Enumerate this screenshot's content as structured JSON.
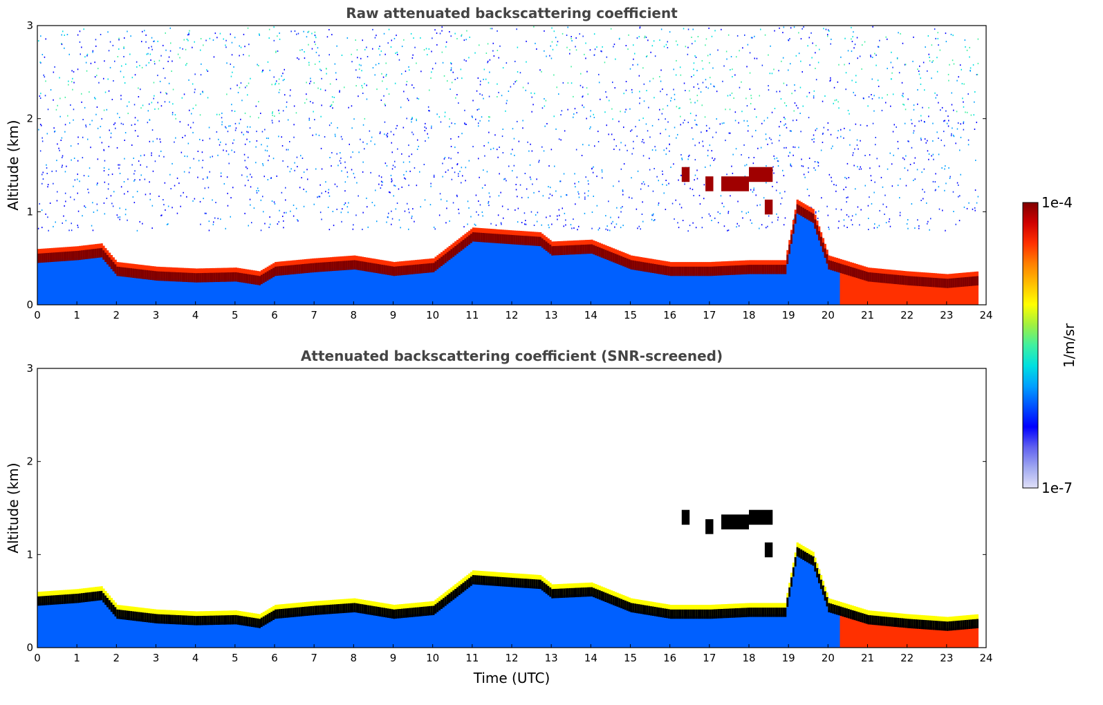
{
  "chart_data": [
    {
      "type": "heatmap",
      "title": "Raw attenuated backscattering coefficient",
      "xlabel": "",
      "ylabel": "Altitude (km)",
      "xlim": [
        0,
        24
      ],
      "ylim": [
        0,
        3
      ],
      "xticks": [
        "0",
        "1",
        "2",
        "3",
        "4",
        "5",
        "6",
        "7",
        "8",
        "9",
        "10",
        "11",
        "12",
        "13",
        "14",
        "15",
        "16",
        "17",
        "18",
        "19",
        "20",
        "21",
        "22",
        "23",
        "24"
      ],
      "yticks": [
        "0",
        "1",
        "2",
        "3"
      ],
      "screened": false,
      "boundary_layer_top_km": [
        [
          0,
          0.52
        ],
        [
          1,
          0.55
        ],
        [
          1.6,
          0.58
        ],
        [
          2,
          0.38
        ],
        [
          3,
          0.33
        ],
        [
          4,
          0.31
        ],
        [
          5,
          0.32
        ],
        [
          5.6,
          0.28
        ],
        [
          6,
          0.38
        ],
        [
          7,
          0.42
        ],
        [
          8,
          0.45
        ],
        [
          9,
          0.38
        ],
        [
          10,
          0.42
        ],
        [
          11,
          0.75
        ],
        [
          12,
          0.72
        ],
        [
          12.7,
          0.7
        ],
        [
          13,
          0.6
        ],
        [
          14,
          0.62
        ],
        [
          15,
          0.45
        ],
        [
          16,
          0.38
        ],
        [
          17,
          0.38
        ],
        [
          18,
          0.4
        ],
        [
          18.9,
          0.4
        ],
        [
          19.2,
          1.05
        ],
        [
          19.6,
          0.95
        ],
        [
          20,
          0.45
        ],
        [
          21,
          0.32
        ],
        [
          22,
          0.28
        ],
        [
          23,
          0.25
        ],
        [
          23.8,
          0.28
        ]
      ],
      "elevated_layers_km": [
        {
          "x": [
            16.3,
            16.5
          ],
          "alt": 1.4
        },
        {
          "x": [
            16.9,
            17.1
          ],
          "alt": 1.3
        },
        {
          "x": [
            17.3,
            18.0
          ],
          "alt": 1.3
        },
        {
          "x": [
            18.0,
            18.6
          ],
          "alt": 1.4
        },
        {
          "x": [
            18.4,
            18.6
          ],
          "alt": 1.05
        }
      ],
      "data_end_hour": 23.8
    },
    {
      "type": "heatmap",
      "title": "Attenuated backscattering coefficient (SNR-screened)",
      "xlabel": "Time (UTC)",
      "ylabel": "Altitude (km)",
      "xlim": [
        0,
        24
      ],
      "ylim": [
        0,
        3
      ],
      "xticks": [
        "0",
        "1",
        "2",
        "3",
        "4",
        "5",
        "6",
        "7",
        "8",
        "9",
        "10",
        "11",
        "12",
        "13",
        "14",
        "15",
        "16",
        "17",
        "18",
        "19",
        "20",
        "21",
        "22",
        "23",
        "24"
      ],
      "yticks": [
        "0",
        "1",
        "2",
        "3"
      ],
      "screened": true,
      "boundary_layer_top_km": [
        [
          0,
          0.52
        ],
        [
          1,
          0.55
        ],
        [
          1.6,
          0.58
        ],
        [
          2,
          0.38
        ],
        [
          3,
          0.33
        ],
        [
          4,
          0.31
        ],
        [
          5,
          0.32
        ],
        [
          5.6,
          0.28
        ],
        [
          6,
          0.38
        ],
        [
          7,
          0.42
        ],
        [
          8,
          0.45
        ],
        [
          9,
          0.38
        ],
        [
          10,
          0.42
        ],
        [
          11,
          0.75
        ],
        [
          12,
          0.72
        ],
        [
          12.7,
          0.7
        ],
        [
          13,
          0.6
        ],
        [
          14,
          0.62
        ],
        [
          15,
          0.45
        ],
        [
          16,
          0.38
        ],
        [
          17,
          0.38
        ],
        [
          18,
          0.4
        ],
        [
          18.9,
          0.4
        ],
        [
          19.2,
          1.05
        ],
        [
          19.6,
          0.95
        ],
        [
          20,
          0.45
        ],
        [
          21,
          0.32
        ],
        [
          22,
          0.28
        ],
        [
          23,
          0.25
        ],
        [
          23.8,
          0.28
        ]
      ],
      "elevated_layers_km": [
        {
          "x": [
            16.3,
            16.5
          ],
          "alt": 1.4
        },
        {
          "x": [
            16.9,
            17.1
          ],
          "alt": 1.3
        },
        {
          "x": [
            17.3,
            18.0
          ],
          "alt": 1.35
        },
        {
          "x": [
            18.0,
            18.6
          ],
          "alt": 1.4
        },
        {
          "x": [
            18.4,
            18.6
          ],
          "alt": 1.05
        }
      ],
      "data_end_hour": 23.8
    }
  ],
  "colorbar": {
    "label": "1/m/sr",
    "max_label": "1e-4",
    "min_label": "1e-7",
    "scale": "log",
    "range": [
      1e-07,
      0.0001
    ],
    "colors": [
      "#e0e0f8",
      "#a0a8f0",
      "#6060f0",
      "#0000ff",
      "#0050ff",
      "#00a0ff",
      "#00e0e0",
      "#40f0a0",
      "#a0f040",
      "#ffff00",
      "#ffc000",
      "#ff8000",
      "#ff3000",
      "#d00000",
      "#800000"
    ]
  }
}
